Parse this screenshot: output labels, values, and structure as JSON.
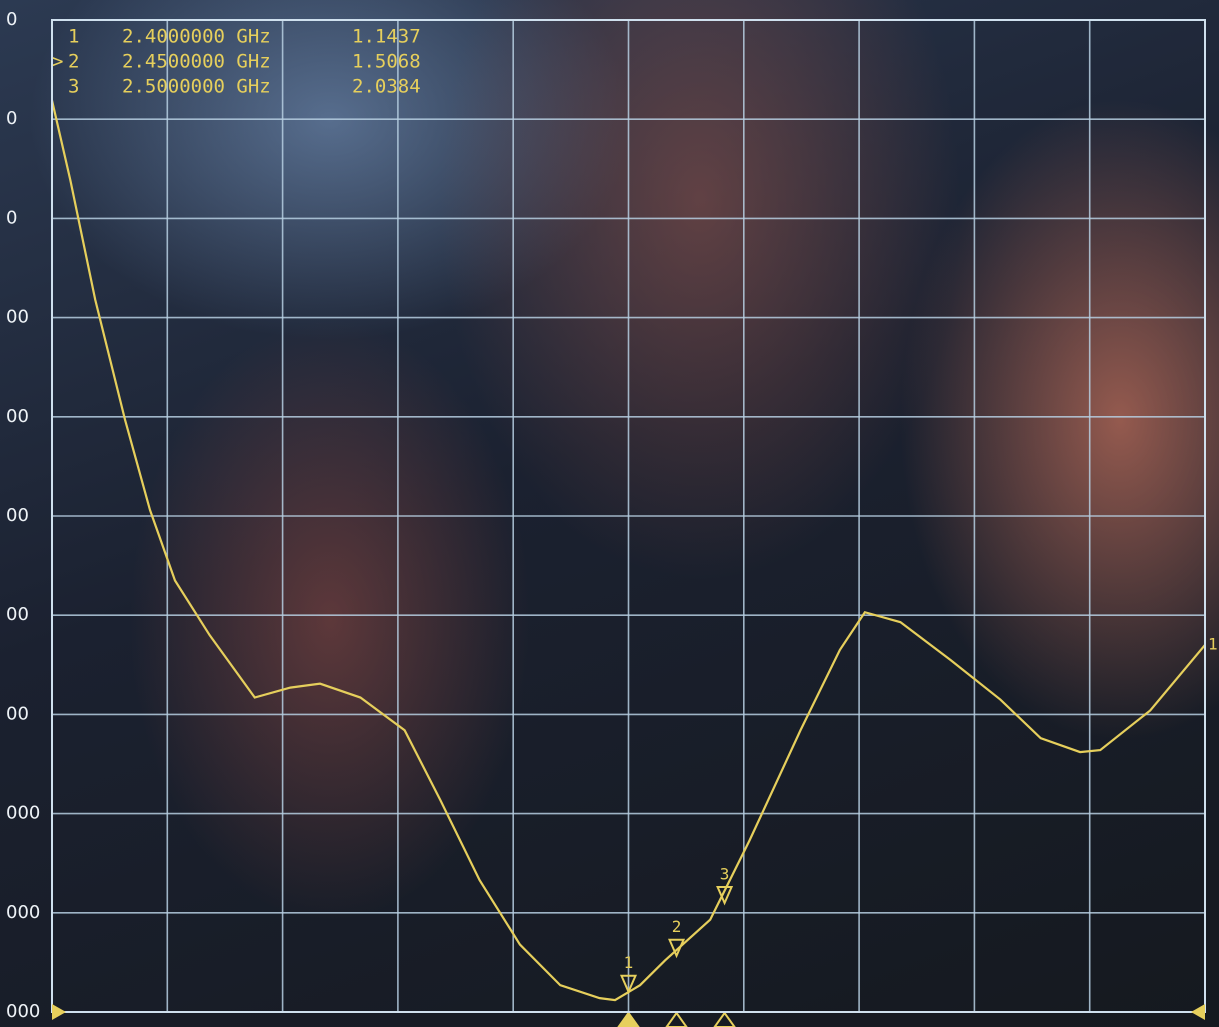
{
  "chart_data": {
    "type": "line",
    "x": [
      1.8,
      1.819,
      1.845,
      1.876,
      1.902,
      1.928,
      1.964,
      2.011,
      2.048,
      2.079,
      2.121,
      2.167,
      2.204,
      2.245,
      2.287,
      2.329,
      2.37,
      2.386,
      2.412,
      2.438,
      2.485,
      2.526,
      2.579,
      2.62,
      2.646,
      2.683,
      2.735,
      2.787,
      2.829,
      2.87,
      2.891,
      2.943,
      3.0
    ],
    "series": [
      {
        "name": "1",
        "color": "#e6cf5c",
        "values": [
          10.19,
          9.39,
          8.18,
          6.97,
          6.06,
          5.35,
          4.8,
          4.17,
          4.27,
          4.31,
          4.17,
          3.84,
          3.14,
          2.33,
          1.68,
          1.27,
          1.14,
          1.12,
          1.27,
          1.52,
          1.93,
          2.73,
          3.84,
          4.65,
          5.03,
          4.93,
          4.55,
          4.15,
          3.76,
          3.62,
          3.64,
          4.04,
          4.7
        ]
      }
    ],
    "xlim": [
      1.8,
      3.0
    ],
    "xticks": [
      1.8,
      1.92,
      2.04,
      2.16,
      2.28,
      2.4,
      2.52,
      2.64,
      2.76,
      2.88,
      3.0
    ],
    "ylim": [
      1,
      11
    ],
    "yticks": [
      {
        "value": 1,
        "label": "000"
      },
      {
        "value": 2,
        "label": "000"
      },
      {
        "value": 3,
        "label": "000"
      },
      {
        "value": 4,
        "label": "00"
      },
      {
        "value": 5,
        "label": "00"
      },
      {
        "value": 6,
        "label": "00"
      },
      {
        "value": 7,
        "label": "00"
      },
      {
        "value": 8,
        "label": "00"
      },
      {
        "value": 9,
        "label": "0"
      },
      {
        "value": 10,
        "label": "0"
      },
      {
        "value": 11,
        "label": "0"
      }
    ],
    "grid": true,
    "markers": {
      "names": [
        "1",
        "2",
        "3"
      ],
      "x": [
        2.4,
        2.45,
        2.5
      ],
      "x_labels": [
        "2.4000000 GHz",
        "2.4500000 GHz",
        "2.5000000 GHz"
      ],
      "values": [
        1.1437,
        1.5068,
        2.0384
      ],
      "value_labels": [
        "1.1437",
        "1.5068",
        "2.0384"
      ],
      "active_symbol": ">",
      "active_index": 1,
      "color": "#e6cf5c"
    }
  }
}
